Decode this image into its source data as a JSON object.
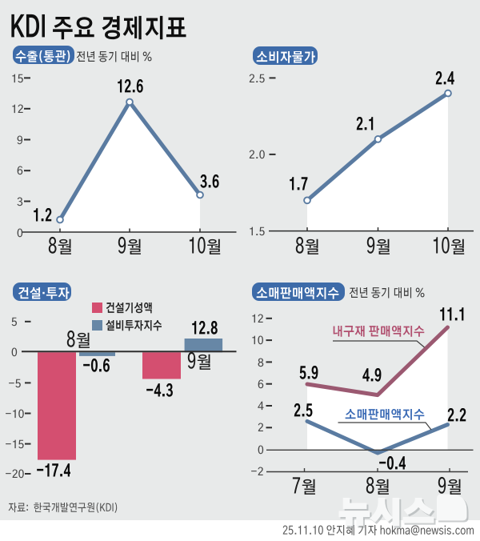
{
  "title": "KDI 주요 경제지표",
  "source": "자료:  한국개발연구원(KDI)",
  "credit": "25.11.10 안지혜 기자 hokma@newsis.com",
  "watermark": "뉴시스",
  "colors": {
    "background": "#e8eaea",
    "badge_blue": "#3d6ba9",
    "steel_blue_line": "#5a7ba1",
    "steel_blue_bar": "#6787a6",
    "pink_bar": "#d44f70",
    "maroon_line": "#9b5971",
    "maroon_label": "#b04e6e",
    "blue_label": "#3a6ab5",
    "area_fill": "#ffffff"
  },
  "chart_data": [
    {
      "type": "line",
      "title": "수출(통관)",
      "subtitle": "전년 동기 대비 %",
      "categories": [
        "8월",
        "9월",
        "10월"
      ],
      "series": [
        {
          "name": "수출(통관)",
          "color": "#5a7ba1",
          "values": [
            1.2,
            12.6,
            3.6
          ]
        }
      ],
      "value_labels": [
        "1.2",
        "12.6",
        "3.6"
      ],
      "y_ticks": [
        "15",
        "12",
        "9",
        "6",
        "3",
        "0"
      ],
      "ylim": [
        0,
        15
      ],
      "unit": "%",
      "grid": false,
      "markers": true,
      "area_under_line": true
    },
    {
      "type": "line",
      "title": "소비자물가",
      "subtitle": "",
      "categories": [
        "8월",
        "9월",
        "10월"
      ],
      "series": [
        {
          "name": "소비자물가",
          "color": "#5a7ba1",
          "values": [
            1.7,
            2.1,
            2.4
          ]
        }
      ],
      "value_labels": [
        "1.7",
        "2.1",
        "2.4"
      ],
      "y_ticks": [
        "2.5",
        "2.0",
        "1.5"
      ],
      "ylim": [
        1.5,
        2.5
      ],
      "unit": "%",
      "grid": false,
      "markers": true,
      "area_under_line": true
    },
    {
      "type": "bar",
      "title": "건설·투자",
      "subtitle": "",
      "categories": [
        "8월",
        "9월"
      ],
      "series": [
        {
          "name": "건설기성액",
          "color": "#d44f70",
          "values": [
            -17.4,
            -4.3
          ]
        },
        {
          "name": "설비투자지수",
          "color": "#6787a6",
          "values": [
            -0.6,
            12.8
          ]
        }
      ],
      "value_labels": [
        [
          "-17.4",
          "-4.3"
        ],
        [
          "-0.6",
          "12.8"
        ]
      ],
      "y_ticks": [
        "5",
        "0",
        "-5",
        "-10",
        "-15",
        "-20"
      ],
      "ylim": [
        -20,
        5
      ],
      "unit": "%",
      "grid": false,
      "legend_position": "top-right",
      "display_note": "12.8 bar drawn truncated above zero line in source graphic"
    },
    {
      "type": "line",
      "title": "소매판매액지수",
      "subtitle": "전년 동기 대비 %",
      "categories": [
        "7월",
        "8월",
        "9월"
      ],
      "series": [
        {
          "name": "내구재 판매액지수",
          "color": "#9b5971",
          "values": [
            5.9,
            4.9,
            11.1
          ]
        },
        {
          "name": "소매판매액지수",
          "color": "#5a7ba1",
          "values": [
            2.5,
            -0.4,
            2.2
          ]
        }
      ],
      "value_labels": [
        [
          "5.9",
          "4.9",
          "11.1"
        ],
        [
          "2.5",
          "-0.4",
          "2.2"
        ]
      ],
      "y_ticks": [
        "12",
        "10",
        "8",
        "6",
        "4",
        "2",
        "0",
        "-2"
      ],
      "ylim": [
        -2,
        12
      ],
      "unit": "%",
      "grid": false,
      "markers": false,
      "area_under_line": true
    }
  ]
}
